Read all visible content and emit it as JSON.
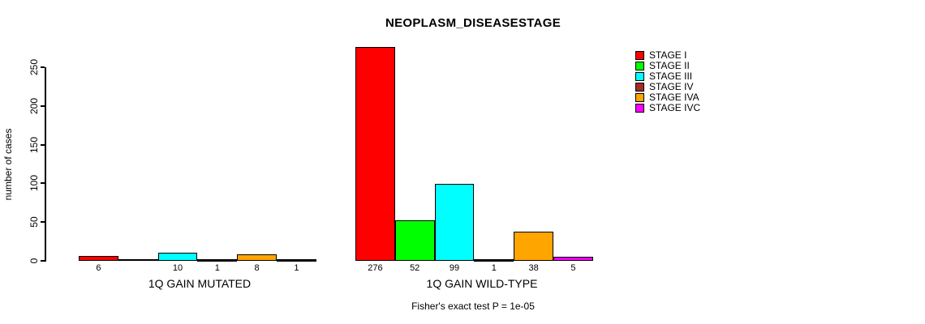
{
  "chart_data": {
    "type": "bar",
    "title": "NEOPLASM_DISEASESTAGE",
    "ylabel": "number of cases",
    "xlabel": "",
    "ylim": [
      0,
      250
    ],
    "yticks": [
      0,
      50,
      100,
      150,
      200,
      250
    ],
    "grid": false,
    "legend_position": "right",
    "categories": [
      "1Q GAIN MUTATED",
      "1Q GAIN WILD-TYPE"
    ],
    "series": [
      {
        "name": "STAGE I",
        "color": "#ff0000",
        "values": [
          6,
          276
        ]
      },
      {
        "name": "STAGE II",
        "color": "#00ff00",
        "values": [
          0,
          52
        ]
      },
      {
        "name": "STAGE III",
        "color": "#00ffff",
        "values": [
          10,
          99
        ]
      },
      {
        "name": "STAGE IV",
        "color": "#a52a2a",
        "values": [
          1,
          1
        ]
      },
      {
        "name": "STAGE IVA",
        "color": "#ffa500",
        "values": [
          8,
          38
        ]
      },
      {
        "name": "STAGE IVC",
        "color": "#ff00ff",
        "values": [
          1,
          5
        ]
      }
    ],
    "annotation": "Fisher's exact test P = 1e-05"
  }
}
